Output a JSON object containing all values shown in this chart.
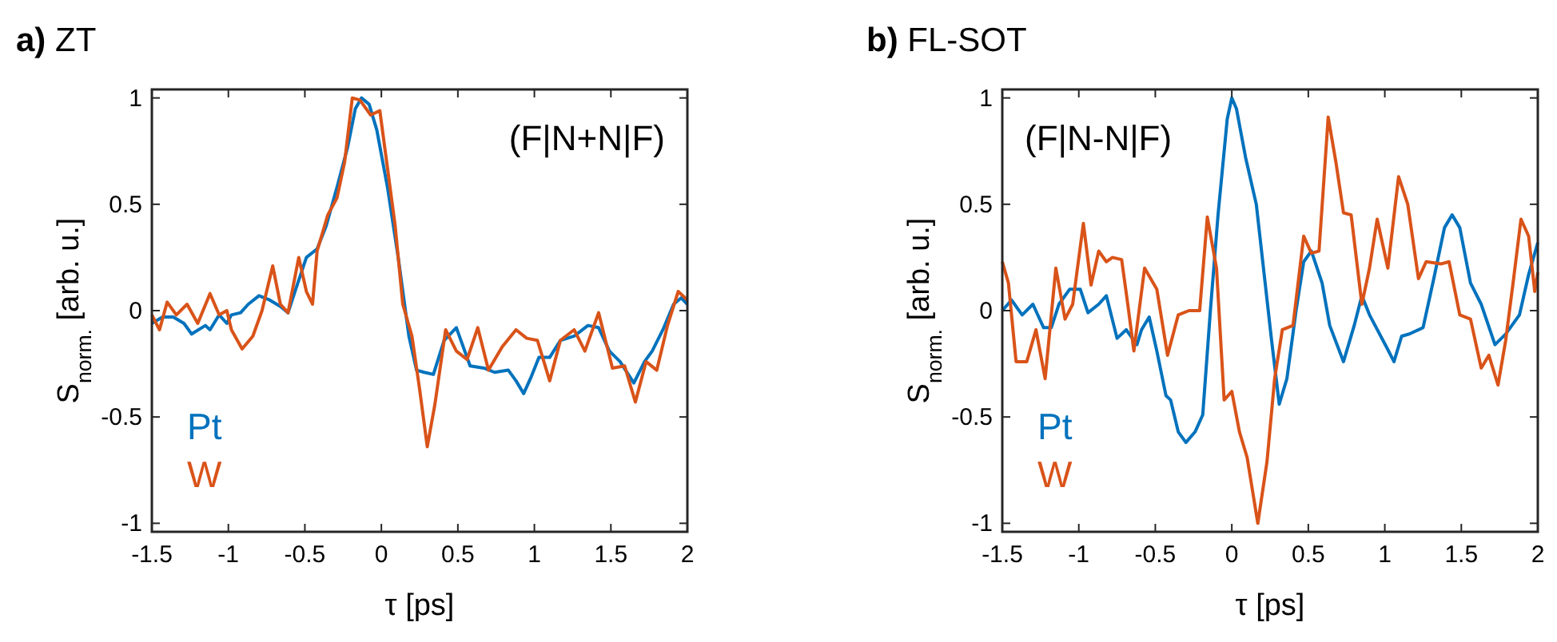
{
  "chart_data": [
    {
      "type": "line",
      "title": "a) ZT",
      "xlabel": "τ [ps]",
      "ylabel": "S$_{norm.}$ [arb. u.]",
      "annotations": [
        "(F|N+N|F)"
      ],
      "xlim": [
        -1.5,
        2
      ],
      "ylim": [
        -1.04,
        1.04
      ],
      "xticks": [
        -1.5,
        -1,
        -0.5,
        0,
        0.5,
        1,
        1.5,
        2
      ],
      "yticks": [
        -1,
        -0.5,
        0,
        0.5,
        1
      ],
      "grid": false,
      "legend": "bottom left",
      "marker": "none",
      "line_style": "solid",
      "series": [
        {
          "name": "Pt",
          "color": "#0072bd",
          "x": [
            -1.5,
            -1.43,
            -1.36,
            -1.29,
            -1.24,
            -1.15,
            -1.12,
            -1.06,
            -1.01,
            -0.98,
            -0.92,
            -0.87,
            -0.8,
            -0.73,
            -0.66,
            -0.61,
            -0.56,
            -0.49,
            -0.42,
            -0.36,
            -0.29,
            -0.22,
            -0.17,
            -0.13,
            -0.08,
            -0.03,
            0.04,
            0.11,
            0.18,
            0.23,
            0.28,
            0.34,
            0.41,
            0.49,
            0.58,
            0.67,
            0.74,
            0.83,
            0.88,
            0.93,
            0.98,
            1.03,
            1.1,
            1.17,
            1.26,
            1.35,
            1.42,
            1.49,
            1.56,
            1.65,
            1.72,
            1.77,
            1.84,
            1.91,
            1.96,
            2.0
          ],
          "values": [
            -0.06,
            -0.03,
            -0.03,
            -0.06,
            -0.11,
            -0.07,
            -0.09,
            -0.02,
            -0.06,
            -0.02,
            -0.01,
            0.03,
            0.07,
            0.05,
            0.02,
            -0.01,
            0.1,
            0.25,
            0.29,
            0.4,
            0.58,
            0.77,
            0.95,
            1.0,
            0.97,
            0.85,
            0.58,
            0.25,
            -0.12,
            -0.28,
            -0.29,
            -0.3,
            -0.14,
            -0.08,
            -0.26,
            -0.27,
            -0.29,
            -0.28,
            -0.33,
            -0.39,
            -0.31,
            -0.22,
            -0.22,
            -0.14,
            -0.12,
            -0.07,
            -0.08,
            -0.19,
            -0.24,
            -0.34,
            -0.24,
            -0.19,
            -0.09,
            0.03,
            0.06,
            0.03
          ]
        },
        {
          "name": "W",
          "color": "#d95319",
          "x": [
            -1.5,
            -1.45,
            -1.4,
            -1.34,
            -1.27,
            -1.2,
            -1.12,
            -1.06,
            -1.01,
            -0.98,
            -0.91,
            -0.84,
            -0.78,
            -0.71,
            -0.66,
            -0.61,
            -0.54,
            -0.49,
            -0.45,
            -0.42,
            -0.35,
            -0.29,
            -0.24,
            -0.19,
            -0.14,
            -0.07,
            -0.01,
            0.04,
            0.09,
            0.14,
            0.2,
            0.25,
            0.3,
            0.35,
            0.42,
            0.49,
            0.56,
            0.63,
            0.7,
            0.79,
            0.88,
            0.95,
            1.02,
            1.1,
            1.17,
            1.26,
            1.33,
            1.42,
            1.51,
            1.59,
            1.66,
            1.73,
            1.8,
            1.87,
            1.94,
            2.0
          ],
          "values": [
            -0.02,
            -0.09,
            0.04,
            -0.02,
            0.03,
            -0.06,
            0.08,
            -0.02,
            0.0,
            -0.09,
            -0.18,
            -0.12,
            0.0,
            0.21,
            0.03,
            -0.01,
            0.25,
            0.09,
            0.03,
            0.28,
            0.45,
            0.53,
            0.7,
            1.0,
            0.99,
            0.92,
            0.94,
            0.67,
            0.4,
            0.03,
            -0.12,
            -0.37,
            -0.64,
            -0.44,
            -0.09,
            -0.19,
            -0.23,
            -0.08,
            -0.28,
            -0.17,
            -0.09,
            -0.13,
            -0.14,
            -0.33,
            -0.14,
            -0.09,
            -0.19,
            -0.01,
            -0.27,
            -0.26,
            -0.43,
            -0.24,
            -0.28,
            -0.07,
            0.09,
            0.05
          ]
        }
      ]
    },
    {
      "type": "line",
      "title": "b) FL-SOT",
      "xlabel": "τ [ps]",
      "ylabel": "S$_{norm.}$ [arb. u.]",
      "annotations": [
        "(F|N-N|F)"
      ],
      "xlim": [
        -1.5,
        2
      ],
      "ylim": [
        -1.04,
        1.04
      ],
      "xticks": [
        -1.5,
        -1,
        -0.5,
        0,
        0.5,
        1,
        1.5,
        2
      ],
      "yticks": [
        -1,
        -0.5,
        0,
        0.5,
        1
      ],
      "grid": false,
      "legend": "bottom left",
      "marker": "none",
      "line_style": "solid",
      "series": [
        {
          "name": "Pt",
          "color": "#0072bd",
          "x": [
            -1.5,
            -1.44,
            -1.37,
            -1.3,
            -1.23,
            -1.18,
            -1.13,
            -1.06,
            -0.99,
            -0.94,
            -0.87,
            -0.82,
            -0.75,
            -0.69,
            -0.62,
            -0.59,
            -0.54,
            -0.49,
            -0.43,
            -0.4,
            -0.35,
            -0.3,
            -0.24,
            -0.19,
            -0.14,
            -0.09,
            -0.03,
            0.0,
            0.03,
            0.09,
            0.16,
            0.21,
            0.26,
            0.31,
            0.36,
            0.42,
            0.47,
            0.52,
            0.59,
            0.64,
            0.73,
            0.8,
            0.85,
            0.9,
            1.01,
            1.06,
            1.11,
            1.16,
            1.25,
            1.32,
            1.39,
            1.44,
            1.49,
            1.56,
            1.63,
            1.72,
            1.79,
            1.88,
            1.94,
            2.0
          ],
          "values": [
            0.0,
            0.05,
            -0.02,
            0.03,
            -0.08,
            -0.08,
            0.03,
            0.1,
            0.1,
            -0.01,
            0.03,
            0.07,
            -0.13,
            -0.09,
            -0.16,
            -0.09,
            -0.03,
            -0.19,
            -0.4,
            -0.42,
            -0.57,
            -0.62,
            -0.57,
            -0.49,
            0.0,
            0.45,
            0.9,
            1.0,
            0.95,
            0.72,
            0.5,
            0.18,
            -0.14,
            -0.44,
            -0.32,
            0.0,
            0.23,
            0.28,
            0.13,
            -0.07,
            -0.24,
            -0.07,
            0.07,
            -0.02,
            -0.17,
            -0.24,
            -0.12,
            -0.11,
            -0.08,
            0.15,
            0.39,
            0.45,
            0.39,
            0.13,
            0.03,
            -0.16,
            -0.11,
            -0.02,
            0.17,
            0.32
          ]
        },
        {
          "name": "W",
          "color": "#d95319",
          "x": [
            -1.5,
            -1.46,
            -1.41,
            -1.34,
            -1.28,
            -1.22,
            -1.15,
            -1.09,
            -1.04,
            -0.97,
            -0.92,
            -0.87,
            -0.82,
            -0.78,
            -0.72,
            -0.68,
            -0.64,
            -0.57,
            -0.49,
            -0.42,
            -0.35,
            -0.28,
            -0.21,
            -0.16,
            -0.1,
            -0.05,
            0.0,
            0.05,
            0.1,
            0.17,
            0.23,
            0.28,
            0.33,
            0.4,
            0.47,
            0.52,
            0.57,
            0.63,
            0.68,
            0.73,
            0.78,
            0.85,
            0.9,
            0.95,
            1.02,
            1.09,
            1.15,
            1.22,
            1.27,
            1.37,
            1.42,
            1.49,
            1.56,
            1.63,
            1.68,
            1.74,
            1.79,
            1.84,
            1.89,
            1.94,
            1.98,
            2.0
          ],
          "values": [
            0.23,
            0.13,
            -0.24,
            -0.24,
            -0.09,
            -0.32,
            0.2,
            -0.04,
            0.03,
            0.41,
            0.12,
            0.28,
            0.23,
            0.25,
            0.24,
            0.03,
            -0.19,
            0.2,
            0.1,
            -0.21,
            -0.02,
            0.0,
            0.0,
            0.44,
            0.2,
            -0.42,
            -0.38,
            -0.57,
            -0.69,
            -1.0,
            -0.71,
            -0.32,
            -0.09,
            -0.07,
            0.35,
            0.27,
            0.28,
            0.91,
            0.7,
            0.46,
            0.45,
            0.03,
            0.2,
            0.43,
            0.2,
            0.63,
            0.5,
            0.15,
            0.23,
            0.22,
            0.23,
            -0.02,
            -0.04,
            -0.27,
            -0.21,
            -0.35,
            -0.14,
            0.14,
            0.43,
            0.35,
            0.09,
            0.18
          ]
        }
      ]
    }
  ]
}
